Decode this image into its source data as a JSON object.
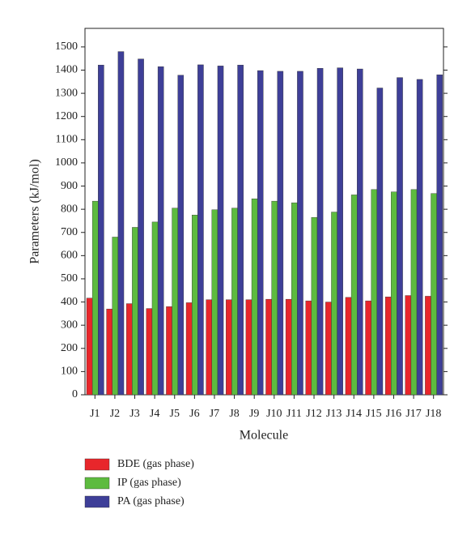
{
  "chart_data": {
    "type": "bar",
    "x_label": "Molecule",
    "y_label": "Parameters (kJ/mol)",
    "categories": [
      "J1",
      "J2",
      "J3",
      "J4",
      "J5",
      "J6",
      "J7",
      "J8",
      "J9",
      "J10",
      "J11",
      "J12",
      "J13",
      "J14",
      "J15",
      "J16",
      "J17",
      "J18"
    ],
    "series": [
      {
        "name": "BDE (gas phase)",
        "color": "#e8262b",
        "values": [
          417,
          370,
          393,
          372,
          380,
          397,
          410,
          410,
          410,
          412,
          412,
          405,
          400,
          420,
          405,
          422,
          428,
          425
        ]
      },
      {
        "name": "IP (gas phase)",
        "color": "#5dbb3f",
        "values": [
          835,
          680,
          722,
          745,
          805,
          775,
          798,
          805,
          845,
          835,
          828,
          765,
          788,
          862,
          885,
          875,
          885,
          868
        ]
      },
      {
        "name": "PA (gas phase)",
        "color": "#3e3f98",
        "values": [
          1422,
          1480,
          1448,
          1415,
          1378,
          1423,
          1418,
          1422,
          1398,
          1395,
          1395,
          1408,
          1410,
          1405,
          1323,
          1368,
          1360,
          1380
        ]
      }
    ],
    "ylim": [
      0,
      1580
    ],
    "yticks": [
      0,
      100,
      200,
      300,
      400,
      500,
      600,
      700,
      800,
      900,
      1000,
      1100,
      1200,
      1300,
      1400,
      1500
    ],
    "legend": "bottom"
  }
}
